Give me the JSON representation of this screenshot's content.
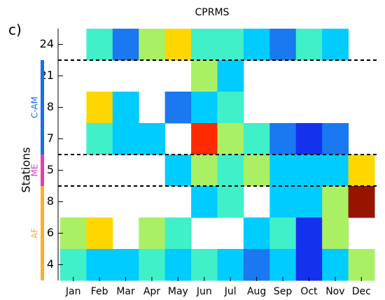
{
  "chart_data": {
    "type": "heatmap",
    "title": "CPRMS",
    "panel_label": "c)",
    "y_label": "Stations",
    "categories": [
      "Jan",
      "Feb",
      "Mar",
      "Apr",
      "May",
      "Jun",
      "Jul",
      "Aug",
      "Sep",
      "Oct",
      "Nov",
      "Dec"
    ],
    "rows": [
      24,
      21,
      8,
      7,
      5,
      8,
      6,
      4
    ],
    "matrix": [
      [
        null,
        "#40f0c8",
        "#1a78f0",
        "#aaf064",
        "#ffd700",
        "#40f0c8",
        "#40f0c8",
        "#00ccff",
        "#1a78f0",
        "#40f0c8",
        "#00ccff",
        null
      ],
      [
        null,
        null,
        null,
        null,
        null,
        "#aaf064",
        "#00ccff",
        null,
        null,
        null,
        null,
        null
      ],
      [
        null,
        "#ffd700",
        "#00ccff",
        null,
        "#1a78f0",
        "#00ccff",
        "#40f0c8",
        null,
        null,
        null,
        null,
        null
      ],
      [
        null,
        "#40f0c8",
        "#00ccff",
        "#00ccff",
        null,
        "#ff2a00",
        "#aaf064",
        "#40f0c8",
        "#1a78f0",
        "#1432ee",
        "#1a78f0",
        null
      ],
      [
        null,
        null,
        null,
        null,
        "#00ccff",
        "#aaf064",
        "#40f0c8",
        "#aaf064",
        "#00ccff",
        "#00ccff",
        "#00ccff",
        "#ffd700"
      ],
      [
        null,
        null,
        null,
        null,
        null,
        "#00ccff",
        "#40f0c8",
        null,
        "#00ccff",
        "#00ccff",
        "#aaf064",
        "#961400"
      ],
      [
        "#aaf064",
        "#ffd700",
        null,
        "#aaf064",
        "#40f0c8",
        null,
        null,
        "#00ccff",
        "#40f0c8",
        "#1432ee",
        "#aaf064",
        null
      ],
      [
        "#40f0c8",
        "#00ccff",
        "#00ccff",
        "#40f0c8",
        "#00ccff",
        "#40f0c8",
        "#00ccff",
        "#1a78f0",
        "#00ccff",
        "#1432ee",
        "#00ccff",
        "#aaf064"
      ]
    ],
    "groups": [
      {
        "name": "C-AM",
        "color": "#1a6cf0",
        "rows": [
          1,
          3
        ]
      },
      {
        "name": "ME",
        "color": "#e040b0",
        "rows": [
          4,
          4
        ]
      },
      {
        "name": "AF",
        "color": "#f8b030",
        "rows": [
          5,
          7
        ]
      }
    ]
  }
}
